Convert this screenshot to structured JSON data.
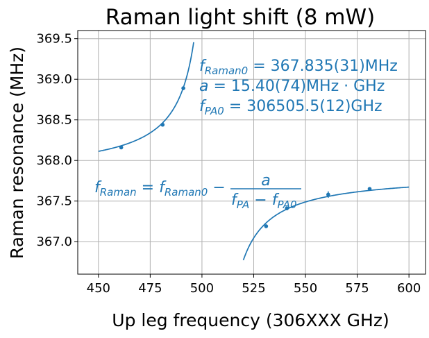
{
  "chart_data": {
    "type": "scatter",
    "title": "Raman light shift (8 mW)",
    "xlabel": "Up leg frequency (306XXX GHz)",
    "ylabel": "Raman resonance (MHz)",
    "xlim": [
      440,
      608
    ],
    "ylim": [
      366.6,
      369.6
    ],
    "xticks": [
      450,
      475,
      500,
      525,
      550,
      575,
      600
    ],
    "yticks": [
      367.0,
      367.5,
      368.0,
      368.5,
      369.0,
      369.5
    ],
    "xtick_labels": [
      "450",
      "475",
      "500",
      "525",
      "550",
      "575",
      "600"
    ],
    "ytick_labels": [
      "367.0",
      "367.5",
      "368.0",
      "368.5",
      "369.0",
      "369.5"
    ],
    "grid": true,
    "color": "#1f77b4",
    "series": [
      {
        "kind": "points",
        "x": [
          461,
          481,
          491,
          531,
          541,
          561,
          581
        ],
        "y": [
          368.16,
          368.44,
          368.89,
          367.19,
          367.41,
          367.58,
          367.65
        ],
        "yerr": [
          0.01,
          0.01,
          0.02,
          0.01,
          0.01,
          0.04,
          0.01
        ]
      },
      {
        "kind": "fit",
        "f_raman0": 367.835,
        "a": 15.4,
        "f_pa0_offset": 505.5,
        "branches": [
          [
            450,
            496
          ],
          [
            520,
            600
          ]
        ]
      }
    ],
    "annotations": {
      "fit_params": [
        {
          "sym": "f",
          "sub": "Raman0",
          "val": " = 367.835(31)MHz"
        },
        {
          "sym": "a",
          "sub": "",
          "val": " = 15.40(74)MHz · GHz"
        },
        {
          "sym": "f",
          "sub": "PA0",
          "val": " = 306505.5(12)GHz"
        }
      ],
      "formula": {
        "lhs": "f",
        "lhs_sub": "Raman",
        "eq": " = ",
        "t1": "f",
        "t1_sub": "Raman0",
        "minus": " − ",
        "num": "a",
        "den1": "f",
        "den1_sub": "PA",
        "den_minus": " − ",
        "den2": "f",
        "den2_sub": "PA0"
      }
    }
  }
}
